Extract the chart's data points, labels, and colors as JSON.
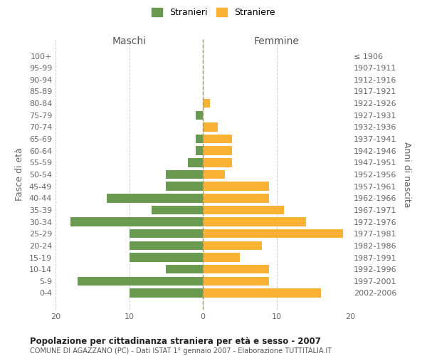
{
  "age_groups": [
    "100+",
    "95-99",
    "90-94",
    "85-89",
    "80-84",
    "75-79",
    "70-74",
    "65-69",
    "60-64",
    "55-59",
    "50-54",
    "45-49",
    "40-44",
    "35-39",
    "30-34",
    "25-29",
    "20-24",
    "15-19",
    "10-14",
    "5-9",
    "0-4"
  ],
  "birth_years": [
    "≤ 1906",
    "1907-1911",
    "1912-1916",
    "1917-1921",
    "1922-1926",
    "1927-1931",
    "1932-1936",
    "1937-1941",
    "1942-1946",
    "1947-1951",
    "1952-1956",
    "1957-1961",
    "1962-1966",
    "1967-1971",
    "1972-1976",
    "1977-1981",
    "1982-1986",
    "1987-1991",
    "1992-1996",
    "1997-2001",
    "2002-2006"
  ],
  "maschi": [
    0,
    0,
    0,
    0,
    0,
    1,
    0,
    1,
    1,
    2,
    5,
    5,
    13,
    7,
    18,
    10,
    10,
    10,
    5,
    17,
    10
  ],
  "femmine": [
    0,
    0,
    0,
    0,
    1,
    0,
    2,
    4,
    4,
    4,
    3,
    9,
    9,
    11,
    14,
    19,
    8,
    5,
    9,
    9,
    16
  ],
  "maschi_color": "#6a9a4f",
  "femmine_color": "#f9b233",
  "grid_color": "#cccccc",
  "title": "Popolazione per cittadinanza straniera per età e sesso - 2007",
  "subtitle": "COMUNE DI AGAZZANO (PC) - Dati ISTAT 1° gennaio 2007 - Elaborazione TUTTITALIA.IT",
  "xlabel_left": "Maschi",
  "xlabel_right": "Femmine",
  "ylabel_left": "Fasce di età",
  "ylabel_right": "Anni di nascita",
  "legend_stranieri": "Stranieri",
  "legend_straniere": "Straniere",
  "xlim": 20,
  "bar_height": 0.75
}
